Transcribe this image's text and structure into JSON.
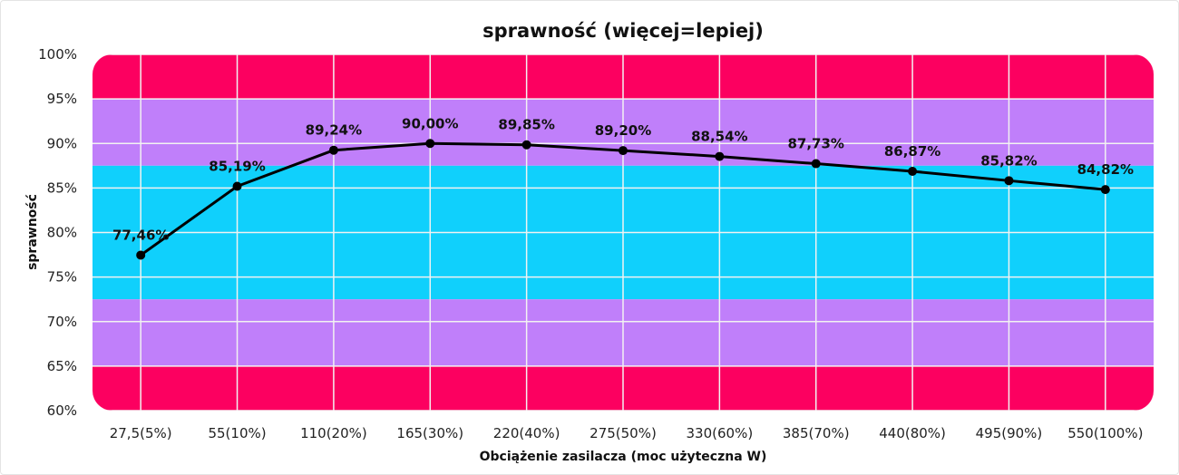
{
  "chart_data": {
    "type": "line",
    "title": "sprawność (więcej=lepiej)",
    "xlabel": "Obciążenie zasilacza (moc użyteczna W)",
    "ylabel": "sprawność",
    "categories": [
      "27,5(5%)",
      "55(10%)",
      "110(20%)",
      "165(30%)",
      "220(40%)",
      "275(50%)",
      "330(60%)",
      "385(70%)",
      "440(80%)",
      "495(90%)",
      "550(100%)"
    ],
    "series": [
      {
        "name": "sprawność",
        "values": [
          77.46,
          85.19,
          89.24,
          90.0,
          89.85,
          89.2,
          88.54,
          87.73,
          86.87,
          85.82,
          84.82
        ],
        "labels": [
          "77,46%",
          "85,19%",
          "89,24%",
          "90,00%",
          "89,85%",
          "89,20%",
          "88,54%",
          "87,73%",
          "86,87%",
          "85,82%",
          "84,82%"
        ]
      }
    ],
    "ylim": [
      60,
      100
    ],
    "yticks": [
      60,
      65,
      70,
      75,
      80,
      85,
      90,
      95,
      100
    ],
    "ytick_labels": [
      "60%",
      "65%",
      "70%",
      "75%",
      "80%",
      "85%",
      "90%",
      "95%",
      "100%"
    ],
    "grid": true,
    "bands": [
      {
        "from": 95,
        "to": 100,
        "color": "#fc0060"
      },
      {
        "from": 87.5,
        "to": 95,
        "color": "#c07ffa"
      },
      {
        "from": 72.5,
        "to": 87.5,
        "color": "#10d0fc"
      },
      {
        "from": 65,
        "to": 72.5,
        "color": "#c07ffa"
      },
      {
        "from": 60,
        "to": 65,
        "color": "#fc0060"
      }
    ],
    "line_color": "#000000"
  }
}
